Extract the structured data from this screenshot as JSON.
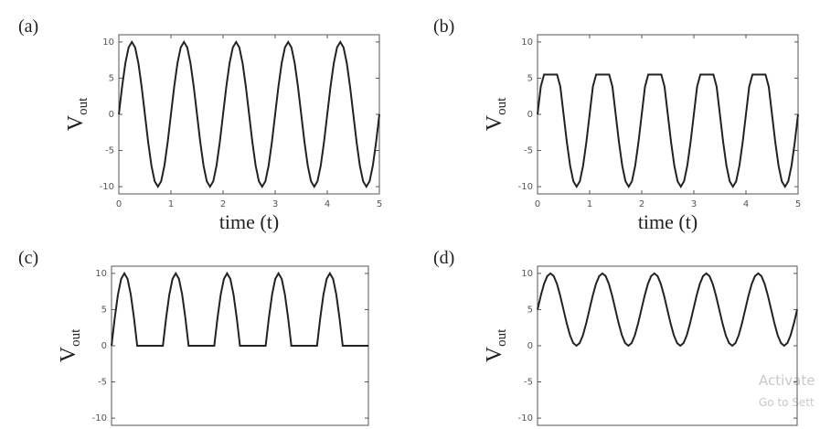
{
  "chart_data": [
    {
      "type": "line",
      "panel_label": "(a)",
      "x_label": "time (t)",
      "y_label": "V",
      "y_label_sub": "out",
      "xlim": [
        0,
        5
      ],
      "ylim": [
        -11,
        11
      ],
      "xticks": [
        0,
        1,
        2,
        3,
        4,
        5
      ],
      "yticks": [
        10,
        5,
        0,
        -5,
        -10
      ],
      "series": [
        {
          "color": "#222222",
          "x": [
            0,
            0.0625,
            0.125,
            0.1875,
            0.25,
            0.3125,
            0.375,
            0.4375,
            0.5,
            0.5625,
            0.625,
            0.6875,
            0.75,
            0.8125,
            0.875,
            0.9375,
            1,
            1.0625,
            1.125,
            1.1875,
            1.25,
            1.3125,
            1.375,
            1.4375,
            1.5,
            1.5625,
            1.625,
            1.6875,
            1.75,
            1.8125,
            1.875,
            1.9375,
            2,
            2.0625,
            2.125,
            2.1875,
            2.25,
            2.3125,
            2.375,
            2.4375,
            2.5,
            2.5625,
            2.625,
            2.6875,
            2.75,
            2.8125,
            2.875,
            2.9375,
            3,
            3.0625,
            3.125,
            3.1875,
            3.25,
            3.3125,
            3.375,
            3.4375,
            3.5,
            3.5625,
            3.625,
            3.6875,
            3.75,
            3.8125,
            3.875,
            3.9375,
            4,
            4.0625,
            4.125,
            4.1875,
            4.25,
            4.3125,
            4.375,
            4.4375,
            4.5,
            4.5625,
            4.625,
            4.6875,
            4.75,
            4.8125,
            4.875,
            4.9375,
            5
          ],
          "values": [
            0,
            3.83,
            7.07,
            9.24,
            10,
            9.24,
            7.07,
            3.83,
            0,
            -3.83,
            -7.07,
            -9.24,
            -10,
            -9.24,
            -7.07,
            -3.83,
            0,
            3.83,
            7.07,
            9.24,
            10,
            9.24,
            7.07,
            3.83,
            0,
            -3.83,
            -7.07,
            -9.24,
            -10,
            -9.24,
            -7.07,
            -3.83,
            0,
            3.83,
            7.07,
            9.24,
            10,
            9.24,
            7.07,
            3.83,
            0,
            -3.83,
            -7.07,
            -9.24,
            -10,
            -9.24,
            -7.07,
            -3.83,
            0,
            3.83,
            7.07,
            9.24,
            10,
            9.24,
            7.07,
            3.83,
            0,
            -3.83,
            -7.07,
            -9.24,
            -10,
            -9.24,
            -7.07,
            -3.83,
            0,
            3.83,
            7.07,
            9.24,
            10,
            9.24,
            7.07,
            3.83,
            0,
            -3.83,
            -7.07,
            -9.24,
            -10,
            -9.24,
            -7.07,
            -3.83,
            0
          ]
        }
      ]
    },
    {
      "type": "line",
      "panel_label": "(b)",
      "x_label": "time (t)",
      "y_label": "V",
      "y_label_sub": "out",
      "xlim": [
        0,
        5
      ],
      "ylim": [
        -11,
        11
      ],
      "xticks": [
        0,
        1,
        2,
        3,
        4,
        5
      ],
      "yticks": [
        10,
        5,
        0,
        -5,
        -10
      ],
      "series": [
        {
          "color": "#222222",
          "x": [
            0,
            0.0625,
            0.125,
            0.1875,
            0.25,
            0.3125,
            0.375,
            0.4375,
            0.5,
            0.5625,
            0.625,
            0.6875,
            0.75,
            0.8125,
            0.875,
            0.9375,
            1,
            1.0625,
            1.125,
            1.1875,
            1.25,
            1.3125,
            1.375,
            1.4375,
            1.5,
            1.5625,
            1.625,
            1.6875,
            1.75,
            1.8125,
            1.875,
            1.9375,
            2,
            2.0625,
            2.125,
            2.1875,
            2.25,
            2.3125,
            2.375,
            2.4375,
            2.5,
            2.5625,
            2.625,
            2.6875,
            2.75,
            2.8125,
            2.875,
            2.9375,
            3,
            3.0625,
            3.125,
            3.1875,
            3.25,
            3.3125,
            3.375,
            3.4375,
            3.5,
            3.5625,
            3.625,
            3.6875,
            3.75,
            3.8125,
            3.875,
            3.9375,
            4,
            4.0625,
            4.125,
            4.1875,
            4.25,
            4.3125,
            4.375,
            4.4375,
            4.5,
            4.5625,
            4.625,
            4.6875,
            4.75,
            4.8125,
            4.875,
            4.9375,
            5
          ],
          "values": [
            0,
            3.83,
            5.5,
            5.5,
            5.5,
            5.5,
            5.5,
            3.83,
            0,
            -3.83,
            -7.07,
            -9.24,
            -10,
            -9.24,
            -7.07,
            -3.83,
            0,
            3.83,
            5.5,
            5.5,
            5.5,
            5.5,
            5.5,
            3.83,
            0,
            -3.83,
            -7.07,
            -9.24,
            -10,
            -9.24,
            -7.07,
            -3.83,
            0,
            3.83,
            5.5,
            5.5,
            5.5,
            5.5,
            5.5,
            3.83,
            0,
            -3.83,
            -7.07,
            -9.24,
            -10,
            -9.24,
            -7.07,
            -3.83,
            0,
            3.83,
            5.5,
            5.5,
            5.5,
            5.5,
            5.5,
            3.83,
            0,
            -3.83,
            -7.07,
            -9.24,
            -10,
            -9.24,
            -7.07,
            -3.83,
            0,
            3.83,
            5.5,
            5.5,
            5.5,
            5.5,
            5.5,
            3.83,
            0,
            -3.83,
            -7.07,
            -9.24,
            -10,
            -9.24,
            -7.07,
            -3.83,
            0
          ]
        }
      ]
    },
    {
      "type": "line",
      "panel_label": "(c)",
      "y_label": "V",
      "y_label_sub": "out",
      "xlim": [
        0,
        5
      ],
      "ylim": [
        -11,
        11
      ],
      "yticks": [
        10,
        5,
        0,
        -5,
        -10
      ],
      "series": [
        {
          "color": "#222222",
          "x": [
            0,
            0.0625,
            0.125,
            0.1875,
            0.25,
            0.3125,
            0.375,
            0.4375,
            0.5,
            0.5625,
            0.625,
            0.6875,
            0.75,
            0.8125,
            0.875,
            0.9375,
            1,
            1.0625,
            1.125,
            1.1875,
            1.25,
            1.3125,
            1.375,
            1.4375,
            1.5,
            1.5625,
            1.625,
            1.6875,
            1.75,
            1.8125,
            1.875,
            1.9375,
            2,
            2.0625,
            2.125,
            2.1875,
            2.25,
            2.3125,
            2.375,
            2.4375,
            2.5,
            2.5625,
            2.625,
            2.6875,
            2.75,
            2.8125,
            2.875,
            2.9375,
            3,
            3.0625,
            3.125,
            3.1875,
            3.25,
            3.3125,
            3.375,
            3.4375,
            3.5,
            3.5625,
            3.625,
            3.6875,
            3.75,
            3.8125,
            3.875,
            3.9375,
            4,
            4.0625,
            4.125,
            4.1875,
            4.25,
            4.3125,
            4.375,
            4.4375,
            4.5,
            4.5625,
            4.625,
            4.6875,
            4.75,
            4.8125,
            4.875,
            4.9375,
            5
          ],
          "values": [
            0,
            3.83,
            7.07,
            9.24,
            10,
            9.24,
            7.07,
            3.83,
            0,
            0,
            0,
            0,
            0,
            0,
            0,
            0,
            0,
            3.83,
            7.07,
            9.24,
            10,
            9.24,
            7.07,
            3.83,
            0,
            0,
            0,
            0,
            0,
            0,
            0,
            0,
            0,
            3.83,
            7.07,
            9.24,
            10,
            9.24,
            7.07,
            3.83,
            0,
            0,
            0,
            0,
            0,
            0,
            0,
            0,
            0,
            3.83,
            7.07,
            9.24,
            10,
            9.24,
            7.07,
            3.83,
            0,
            0,
            0,
            0,
            0,
            0,
            0,
            0,
            0,
            3.83,
            7.07,
            9.24,
            10,
            9.24,
            7.07,
            3.83,
            0,
            0,
            0,
            0,
            0,
            0,
            0,
            0,
            0
          ]
        }
      ]
    },
    {
      "type": "line",
      "panel_label": "(d)",
      "y_label": "V",
      "y_label_sub": "out",
      "xlim": [
        0,
        5
      ],
      "ylim": [
        -11,
        11
      ],
      "yticks": [
        10,
        5,
        0,
        -5,
        -10
      ],
      "series": [
        {
          "color": "#222222",
          "x": [
            0,
            0.0625,
            0.125,
            0.1875,
            0.25,
            0.3125,
            0.375,
            0.4375,
            0.5,
            0.5625,
            0.625,
            0.6875,
            0.75,
            0.8125,
            0.875,
            0.9375,
            1,
            1.0625,
            1.125,
            1.1875,
            1.25,
            1.3125,
            1.375,
            1.4375,
            1.5,
            1.5625,
            1.625,
            1.6875,
            1.75,
            1.8125,
            1.875,
            1.9375,
            2,
            2.0625,
            2.125,
            2.1875,
            2.25,
            2.3125,
            2.375,
            2.4375,
            2.5,
            2.5625,
            2.625,
            2.6875,
            2.75,
            2.8125,
            2.875,
            2.9375,
            3,
            3.0625,
            3.125,
            3.1875,
            3.25,
            3.3125,
            3.375,
            3.4375,
            3.5,
            3.5625,
            3.625,
            3.6875,
            3.75,
            3.8125,
            3.875,
            3.9375,
            4,
            4.0625,
            4.125,
            4.1875,
            4.25,
            4.3125,
            4.375,
            4.4375,
            4.5,
            4.5625,
            4.625,
            4.6875,
            4.75,
            4.8125,
            4.875,
            4.9375,
            5
          ],
          "values": [
            5,
            6.91,
            8.54,
            9.62,
            10,
            9.62,
            8.54,
            6.91,
            5,
            3.09,
            1.46,
            0.38,
            0,
            0.38,
            1.46,
            3.09,
            5,
            6.91,
            8.54,
            9.62,
            10,
            9.62,
            8.54,
            6.91,
            5,
            3.09,
            1.46,
            0.38,
            0,
            0.38,
            1.46,
            3.09,
            5,
            6.91,
            8.54,
            9.62,
            10,
            9.62,
            8.54,
            6.91,
            5,
            3.09,
            1.46,
            0.38,
            0,
            0.38,
            1.46,
            3.09,
            5,
            6.91,
            8.54,
            9.62,
            10,
            9.62,
            8.54,
            6.91,
            5,
            3.09,
            1.46,
            0.38,
            0,
            0.38,
            1.46,
            3.09,
            5,
            6.91,
            8.54,
            9.62,
            10,
            9.62,
            8.54,
            6.91,
            5,
            3.09,
            1.46,
            0.38,
            0,
            0.38,
            1.46,
            3.09,
            5
          ]
        }
      ]
    }
  ],
  "watermark": [
    "Activate",
    "Go to Sett"
  ]
}
